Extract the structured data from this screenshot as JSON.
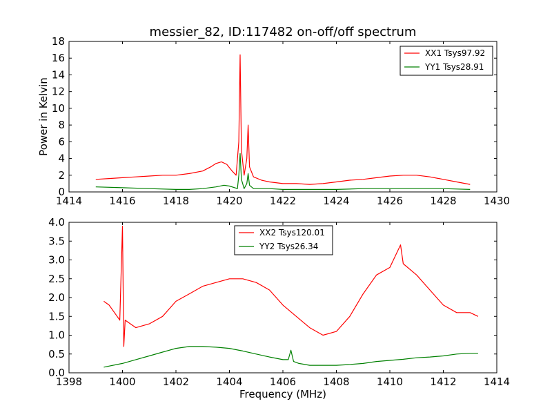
{
  "chart_data": [
    {
      "type": "line",
      "title": "messier_82, ID:117482 on-off/off spectrum",
      "xlabel": "",
      "ylabel": "Power in Kelvin",
      "xlim": [
        1414,
        1430
      ],
      "ylim": [
        0,
        18
      ],
      "xticks": [
        "1414",
        "1416",
        "1418",
        "1420",
        "1422",
        "1424",
        "1426",
        "1428",
        "1430"
      ],
      "yticks": [
        "0",
        "2",
        "4",
        "6",
        "8",
        "10",
        "12",
        "14",
        "16",
        "18"
      ],
      "legend_position": "top-right",
      "grid": false,
      "series": [
        {
          "name": "XX1 Tsys97.92",
          "color": "#ff0000",
          "x": [
            1415.0,
            1415.5,
            1416.0,
            1416.5,
            1417.0,
            1417.5,
            1418.0,
            1418.5,
            1419.0,
            1419.3,
            1419.5,
            1419.7,
            1419.9,
            1420.1,
            1420.25,
            1420.35,
            1420.4,
            1420.45,
            1420.55,
            1420.65,
            1420.7,
            1420.75,
            1420.9,
            1421.2,
            1421.5,
            1422.0,
            1422.5,
            1423.0,
            1423.5,
            1424.0,
            1424.5,
            1425.0,
            1425.5,
            1426.0,
            1426.5,
            1427.0,
            1427.5,
            1428.0,
            1428.5,
            1429.0
          ],
          "values": [
            1.5,
            1.6,
            1.7,
            1.8,
            1.9,
            2.0,
            2.0,
            2.2,
            2.5,
            3.0,
            3.4,
            3.6,
            3.3,
            2.5,
            2.0,
            6.0,
            16.4,
            5.0,
            2.0,
            4.0,
            8.0,
            3.0,
            1.8,
            1.4,
            1.2,
            1.0,
            1.0,
            0.9,
            1.0,
            1.2,
            1.4,
            1.5,
            1.7,
            1.9,
            2.0,
            2.0,
            1.8,
            1.5,
            1.2,
            0.9
          ]
        },
        {
          "name": "YY1 Tsys28.91",
          "color": "#008000",
          "x": [
            1415.0,
            1416.0,
            1417.0,
            1418.0,
            1418.5,
            1419.0,
            1419.5,
            1419.8,
            1420.0,
            1420.2,
            1420.3,
            1420.35,
            1420.4,
            1420.45,
            1420.55,
            1420.65,
            1420.7,
            1420.75,
            1420.9,
            1421.5,
            1422.0,
            1423.0,
            1424.0,
            1425.0,
            1426.0,
            1427.0,
            1428.0,
            1429.0
          ],
          "values": [
            0.6,
            0.5,
            0.4,
            0.3,
            0.3,
            0.4,
            0.6,
            0.8,
            0.7,
            0.5,
            0.4,
            2.0,
            4.6,
            1.5,
            0.4,
            1.0,
            2.2,
            0.8,
            0.4,
            0.4,
            0.3,
            0.3,
            0.3,
            0.4,
            0.4,
            0.4,
            0.4,
            0.3
          ]
        }
      ]
    },
    {
      "type": "line",
      "title": "",
      "xlabel": "Frequency (MHz)",
      "ylabel": "",
      "xlim": [
        1398,
        1414
      ],
      "ylim": [
        0,
        4
      ],
      "xticks": [
        "1398",
        "1400",
        "1402",
        "1404",
        "1406",
        "1408",
        "1410",
        "1412",
        "1414"
      ],
      "yticks": [
        "0.0",
        "0.5",
        "1.0",
        "1.5",
        "2.0",
        "2.5",
        "3.0",
        "3.5",
        "4.0"
      ],
      "legend_position": "top-center",
      "grid": false,
      "series": [
        {
          "name": "XX2 Tsys120.01",
          "color": "#ff0000",
          "x": [
            1399.3,
            1399.5,
            1399.7,
            1399.9,
            1400.0,
            1400.05,
            1400.1,
            1400.5,
            1401.0,
            1401.5,
            1402.0,
            1402.5,
            1403.0,
            1403.5,
            1404.0,
            1404.5,
            1405.0,
            1405.5,
            1406.0,
            1406.5,
            1407.0,
            1407.5,
            1408.0,
            1408.5,
            1409.0,
            1409.5,
            1410.0,
            1410.4,
            1410.5,
            1411.0,
            1411.5,
            1412.0,
            1412.5,
            1413.0,
            1413.3
          ],
          "values": [
            1.9,
            1.8,
            1.6,
            1.4,
            3.9,
            0.7,
            1.4,
            1.2,
            1.3,
            1.5,
            1.9,
            2.1,
            2.3,
            2.4,
            2.5,
            2.5,
            2.4,
            2.2,
            1.8,
            1.5,
            1.2,
            1.0,
            1.1,
            1.5,
            2.1,
            2.6,
            2.8,
            3.4,
            2.9,
            2.6,
            2.2,
            1.8,
            1.6,
            1.6,
            1.5
          ]
        },
        {
          "name": "YY2 Tsys26.34",
          "color": "#008000",
          "x": [
            1399.3,
            1400.0,
            1400.5,
            1401.0,
            1401.5,
            1402.0,
            1402.5,
            1403.0,
            1403.5,
            1404.0,
            1404.5,
            1405.0,
            1405.5,
            1406.0,
            1406.2,
            1406.3,
            1406.4,
            1406.6,
            1407.0,
            1407.5,
            1408.0,
            1408.5,
            1409.0,
            1409.5,
            1410.0,
            1410.5,
            1411.0,
            1411.5,
            1412.0,
            1412.5,
            1413.0,
            1413.3
          ],
          "values": [
            0.15,
            0.25,
            0.35,
            0.45,
            0.55,
            0.65,
            0.7,
            0.7,
            0.68,
            0.65,
            0.58,
            0.5,
            0.42,
            0.35,
            0.35,
            0.6,
            0.3,
            0.25,
            0.2,
            0.2,
            0.2,
            0.22,
            0.25,
            0.3,
            0.33,
            0.36,
            0.4,
            0.42,
            0.45,
            0.5,
            0.52,
            0.52
          ]
        }
      ]
    }
  ]
}
